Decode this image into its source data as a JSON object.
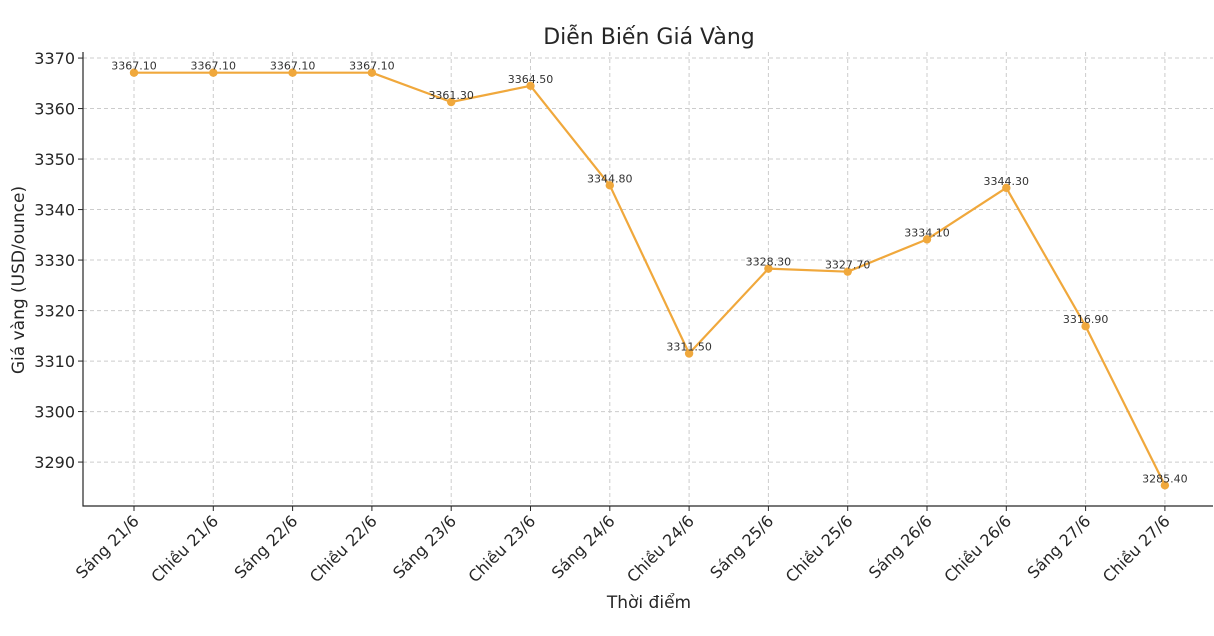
{
  "chart_data": {
    "type": "line",
    "title": "Diễn Biến Giá Vàng",
    "xlabel": "Thời điểm",
    "ylabel": "Giá vàng (USD/ounce)",
    "categories": [
      "Sáng 21/6",
      "Chiều 21/6",
      "Sáng 22/6",
      "Chiều 22/6",
      "Sáng 23/6",
      "Chiều 23/6",
      "Sáng 24/6",
      "Chiều 24/6",
      "Sáng 25/6",
      "Chiều 25/6",
      "Sáng 26/6",
      "Chiều 26/6",
      "Sáng 27/6",
      "Chiều 27/6"
    ],
    "values": [
      3367.1,
      3367.1,
      3367.1,
      3367.1,
      3361.3,
      3364.5,
      3344.8,
      3311.5,
      3328.3,
      3327.7,
      3334.1,
      3344.3,
      3316.9,
      3285.4
    ],
    "data_labels": [
      "3367.10",
      "3367.10",
      "3367.10",
      "3367.10",
      "3361.30",
      "3364.50",
      "3344.80",
      "3311.50",
      "3328.30",
      "3327.70",
      "3334.10",
      "3344.30",
      "3316.90",
      "3285.40"
    ],
    "y_ticks": [
      3290,
      3300,
      3310,
      3320,
      3330,
      3340,
      3350,
      3360,
      3370
    ],
    "ylim": [
      3281.3,
      3371.2
    ],
    "grid": true,
    "line_color": "#f0a83c",
    "marker_color": "#f0a83c"
  }
}
